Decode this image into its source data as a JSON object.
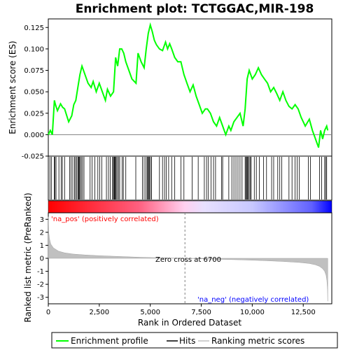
{
  "chart_data": {
    "type": "line",
    "title": "Enrichment plot: TCTGGAC,MIR-198",
    "es_panel": {
      "ylabel": "Enrichment score (ES)",
      "ylim": [
        -0.025,
        0.135
      ],
      "yticks": [
        -0.025,
        0.0,
        0.025,
        0.05,
        0.075,
        0.1,
        0.125
      ],
      "ytick_labels": [
        "-0.025",
        "0.000",
        "0.025",
        "0.050",
        "0.075",
        "0.100",
        "0.125"
      ],
      "series": [
        {
          "name": "Enrichment profile",
          "color": "#00ff00",
          "x": [
            0,
            100,
            200,
            300,
            350,
            450,
            600,
            700,
            800,
            1000,
            1150,
            1250,
            1350,
            1450,
            1550,
            1650,
            1800,
            1950,
            2100,
            2200,
            2350,
            2500,
            2650,
            2800,
            2900,
            3050,
            3200,
            3300,
            3400,
            3500,
            3600,
            3700,
            3800,
            3950,
            4100,
            4300,
            4400,
            4550,
            4700,
            4800,
            4900,
            5000,
            5100,
            5200,
            5300,
            5450,
            5600,
            5750,
            5850,
            5950,
            6050,
            6200,
            6350,
            6500,
            6650,
            6800,
            6950,
            7100,
            7250,
            7400,
            7550,
            7700,
            7800,
            7950,
            8100,
            8250,
            8400,
            8550,
            8700,
            8850,
            8950,
            9100,
            9250,
            9400,
            9550,
            9650,
            9750,
            9850,
            10000,
            10150,
            10300,
            10450,
            10600,
            10750,
            10900,
            11050,
            11200,
            11350,
            11500,
            11650,
            11800,
            11950,
            12100,
            12250,
            12400,
            12600,
            12800,
            12950,
            13100,
            13250,
            13350,
            13450,
            13550,
            13650,
            13700
          ],
          "y": [
            0.0,
            0.005,
            0.0,
            0.04,
            0.035,
            0.028,
            0.036,
            0.032,
            0.03,
            0.015,
            0.022,
            0.035,
            0.04,
            0.055,
            0.07,
            0.08,
            0.07,
            0.06,
            0.055,
            0.062,
            0.05,
            0.06,
            0.05,
            0.04,
            0.053,
            0.045,
            0.05,
            0.09,
            0.08,
            0.1,
            0.1,
            0.095,
            0.085,
            0.075,
            0.065,
            0.06,
            0.095,
            0.085,
            0.078,
            0.1,
            0.118,
            0.128,
            0.12,
            0.11,
            0.105,
            0.1,
            0.098,
            0.108,
            0.1,
            0.106,
            0.1,
            0.09,
            0.085,
            0.085,
            0.07,
            0.06,
            0.05,
            0.058,
            0.045,
            0.035,
            0.025,
            0.03,
            0.03,
            0.025,
            0.015,
            0.01,
            0.02,
            0.01,
            0.0,
            0.01,
            0.005,
            0.015,
            0.02,
            0.025,
            0.01,
            0.03,
            0.065,
            0.075,
            0.065,
            0.07,
            0.078,
            0.07,
            0.065,
            0.06,
            0.05,
            0.055,
            0.048,
            0.04,
            0.05,
            0.04,
            0.033,
            0.03,
            0.035,
            0.03,
            0.02,
            0.01,
            0.018,
            0.005,
            -0.005,
            -0.015,
            0.005,
            -0.005,
            0.005,
            0.01,
            0.005
          ]
        }
      ],
      "zero_line": true
    },
    "hits_panel": {
      "hit_positions": [
        80,
        160,
        290,
        330,
        380,
        520,
        630,
        690,
        800,
        1050,
        1120,
        1200,
        1290,
        1340,
        1400,
        1460,
        1490,
        1520,
        1560,
        1620,
        1680,
        1750,
        2050,
        2150,
        2280,
        2430,
        2520,
        2620,
        2850,
        2950,
        3040,
        3150,
        3190,
        3230,
        3260,
        3290,
        3330,
        3380,
        3450,
        3500,
        3620,
        3680,
        3800,
        4290,
        4620,
        4700,
        4790,
        4850,
        4880,
        4920,
        4960,
        5010,
        5060,
        5450,
        5600,
        5700,
        5780,
        5900,
        6050,
        6200,
        6500,
        6650,
        7050,
        7350,
        7650,
        7760,
        7850,
        7980,
        8100,
        8200,
        8500,
        8550,
        8850,
        9000,
        9100,
        9200,
        9300,
        9400,
        9500,
        9650,
        9690,
        9720,
        9760,
        9800,
        9850,
        9900,
        9950,
        10100,
        10200,
        10350,
        10550,
        10700,
        10950,
        11050,
        11250,
        11350,
        11450,
        11800,
        11950,
        12100,
        12200,
        12300,
        12750,
        12850,
        13300,
        13400,
        13550,
        13600,
        13650
      ]
    },
    "colorbar": {
      "pos_label": "'na_pos' (positively correlated)",
      "neg_label": "'na_neg' (negatively correlated)",
      "pos_color": "#ff0000",
      "neg_color": "#0000ff",
      "zero_cross": 6700
    },
    "metric_panel": {
      "ylabel": "Ranked list metric (PreRanked)",
      "ylim": [
        -3.5,
        3.5
      ],
      "yticks": [
        -3,
        -2,
        -1,
        0,
        1,
        2,
        3
      ],
      "ytick_labels": [
        "-3",
        "-2",
        "-1",
        "0",
        "1",
        "2",
        "3"
      ],
      "zero_cross_label": "Zero cross at 6700",
      "xlabel": "Rank in Ordered Dataset",
      "xlim": [
        0,
        13900
      ],
      "xticks": [
        0,
        2500,
        5000,
        7500,
        10000,
        12500
      ],
      "xtick_labels": [
        "0",
        "2,500",
        "5,000",
        "7,500",
        "10,000",
        "12,500"
      ],
      "metric_curve": {
        "rank": [
          0,
          20,
          60,
          120,
          250,
          500,
          800,
          1200,
          1800,
          2500,
          3500,
          4500,
          5500,
          6700,
          7500,
          8500,
          9500,
          10500,
          11500,
          12300,
          12800,
          13100,
          13300,
          13450,
          13550,
          13620,
          13660,
          13690,
          13700
        ],
        "value": [
          3.2,
          2.0,
          1.5,
          1.1,
          0.8,
          0.55,
          0.42,
          0.33,
          0.26,
          0.2,
          0.14,
          0.08,
          0.04,
          0.0,
          -0.04,
          -0.08,
          -0.12,
          -0.17,
          -0.24,
          -0.32,
          -0.4,
          -0.5,
          -0.62,
          -0.8,
          -1.0,
          -1.3,
          -1.7,
          -2.4,
          -3.3
        ]
      }
    },
    "legend": [
      {
        "label": "Enrichment profile",
        "color": "#00ff00"
      },
      {
        "label": "Hits",
        "color": "#000000"
      },
      {
        "label": "Ranking metric scores",
        "color": "#c0c0c0"
      }
    ]
  }
}
